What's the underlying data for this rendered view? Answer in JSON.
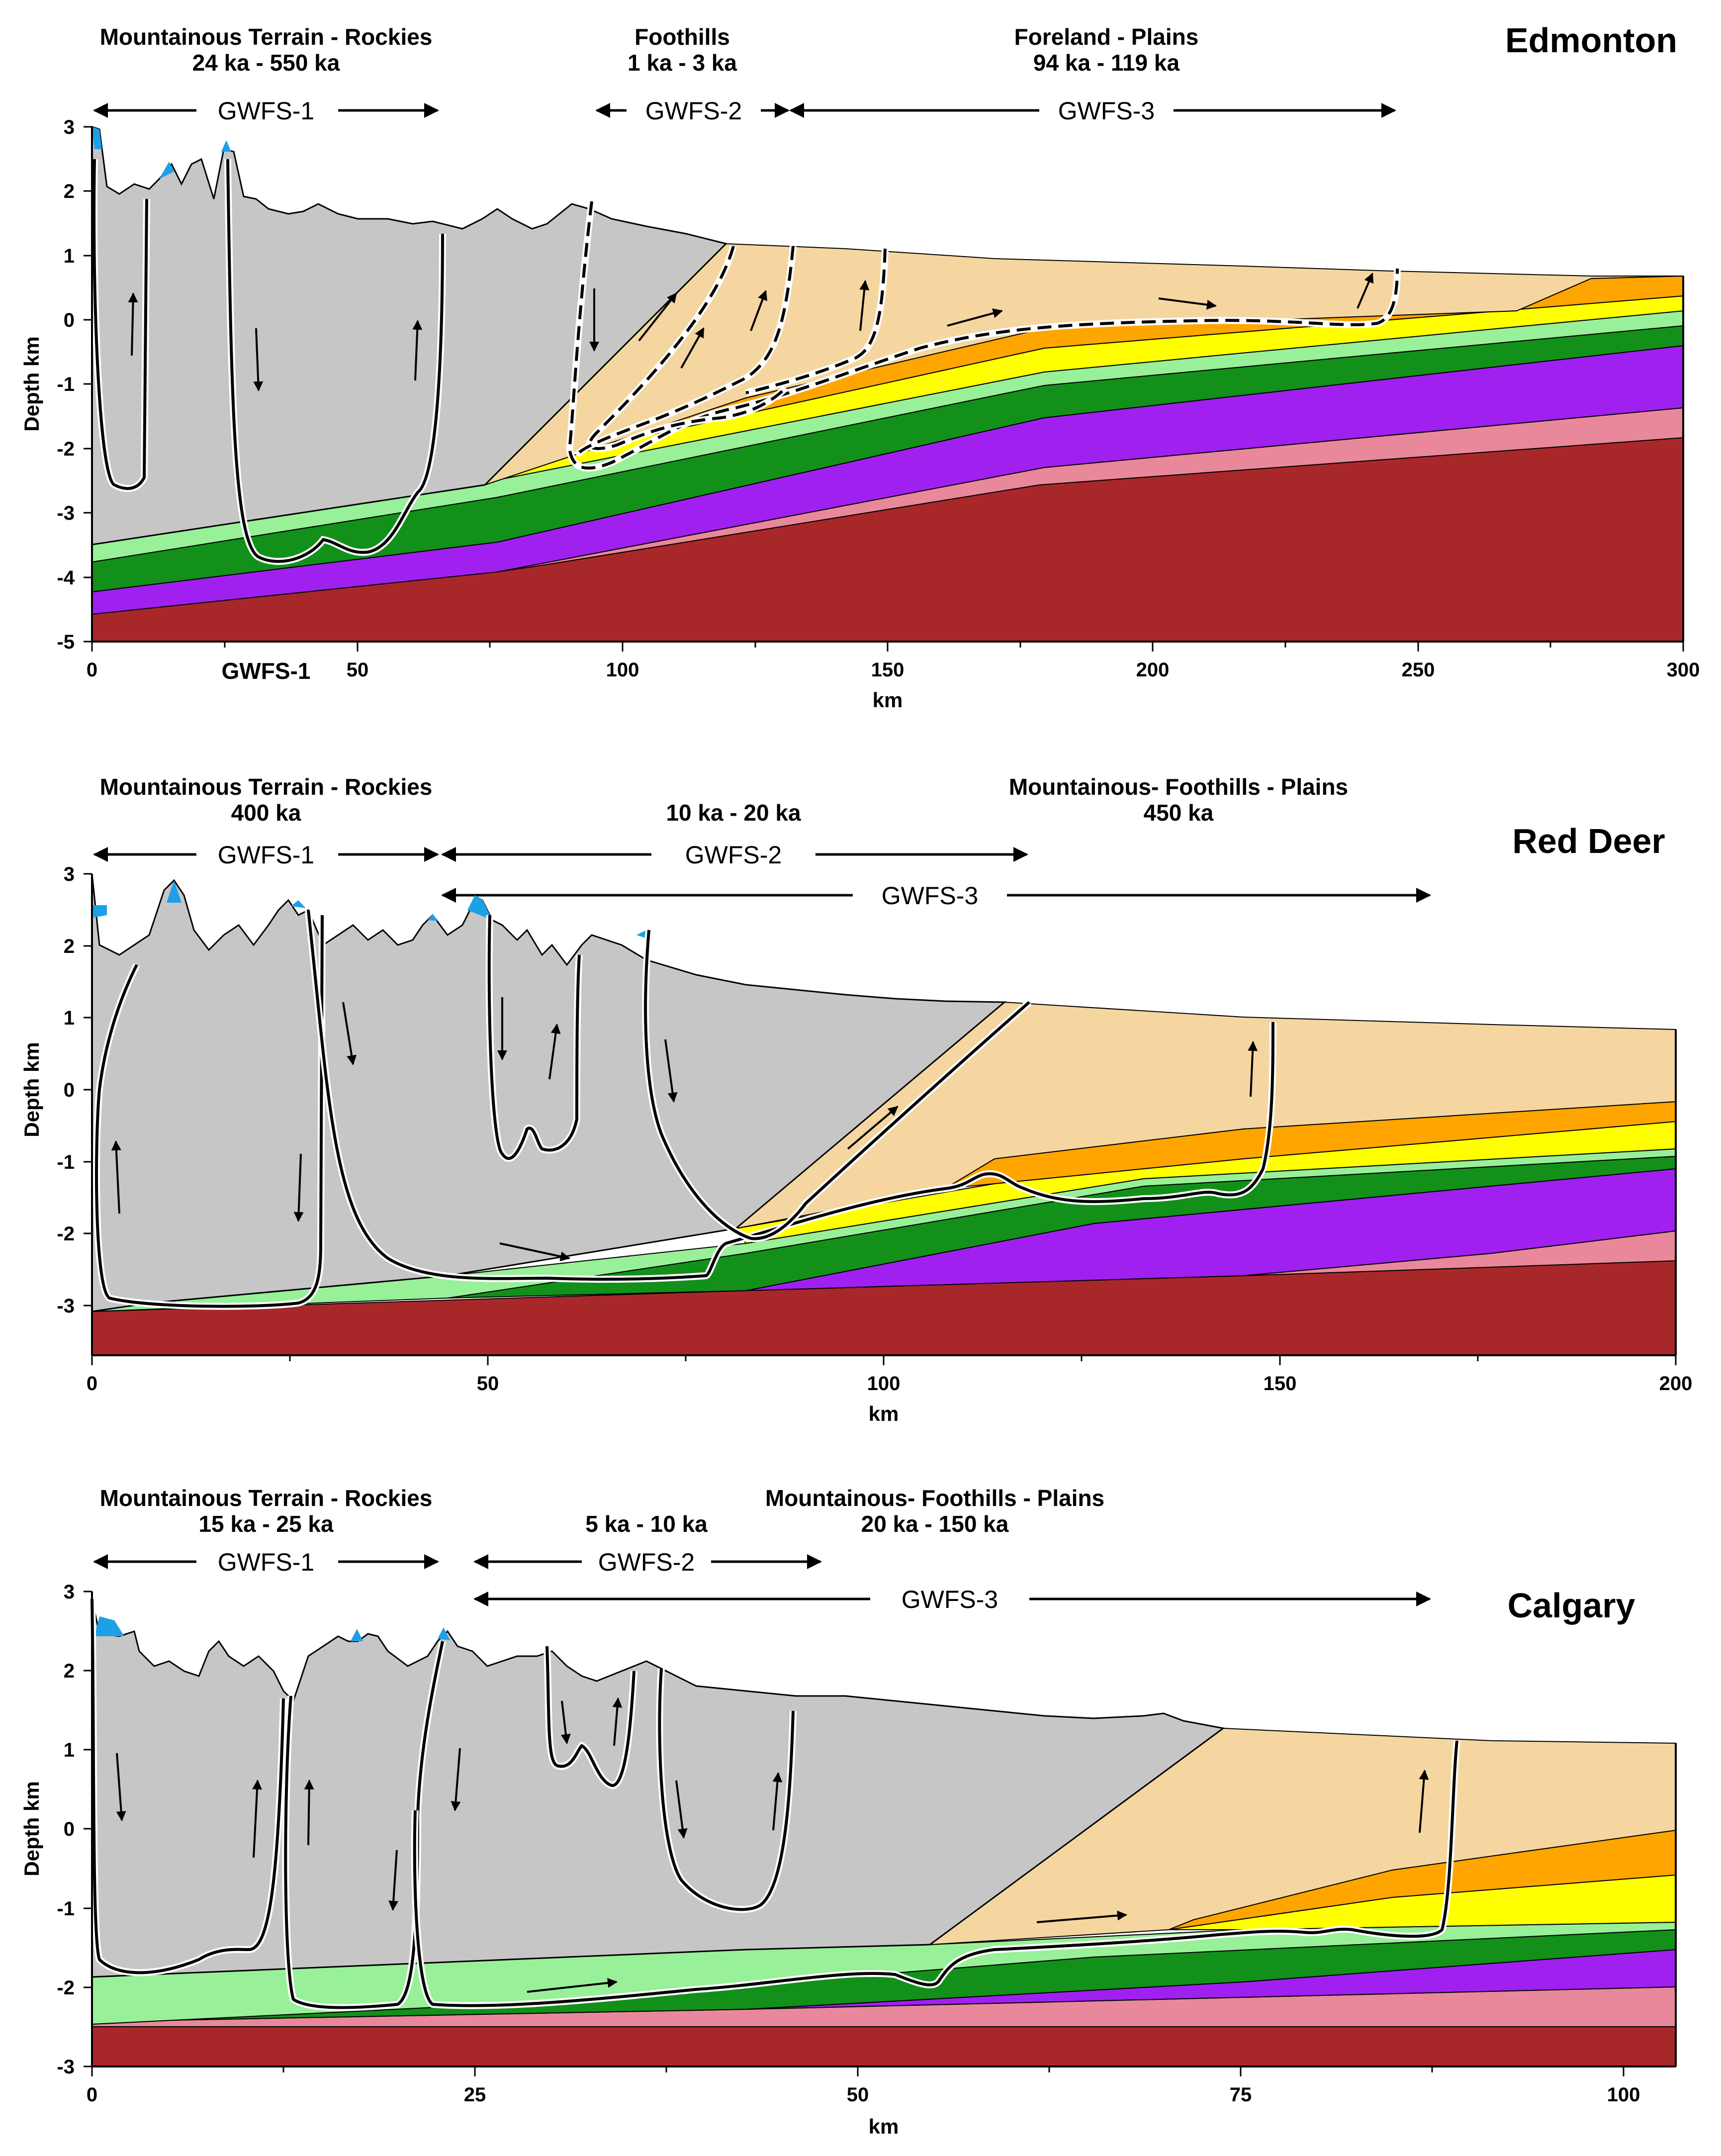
{
  "colors": {
    "basement": "#a8282a",
    "pink": "#e8889a",
    "purple": "#a020f0",
    "dark_green": "#12901a",
    "light_green": "#98f098",
    "yellow": "#ffff00",
    "orange": "#ffa500",
    "tan": "#f5d6a0",
    "grey": "#c6c6c6",
    "ice": "#1ea0e6"
  },
  "panels": [
    {
      "id": "edmonton",
      "city": "Edmonton",
      "headers": [
        {
          "title": "Mountainous Terrain - Rockies",
          "ages": "24 ka - 550 ka"
        },
        {
          "title": "Foothills",
          "ages": "1 ka - 3 ka"
        },
        {
          "title": "Foreland - Plains",
          "ages": "94 ka - 119 ka"
        }
      ],
      "gwfs": [
        "GWFS-1",
        "GWFS-2",
        "GWFS-3"
      ],
      "extra_label": "GWFS-1",
      "x_label": "km",
      "y_label": "Depth km",
      "x_ticks": [
        "0",
        "50",
        "100",
        "150",
        "200",
        "250",
        "300"
      ],
      "y_ticks": [
        "3",
        "2",
        "1",
        "0",
        "-1",
        "-2",
        "-3",
        "-4",
        "-5"
      ]
    },
    {
      "id": "red-deer",
      "city": "Red Deer",
      "headers": [
        {
          "title": "Mountainous Terrain - Rockies",
          "ages": "400 ka"
        },
        {
          "title": "",
          "ages": "10 ka - 20 ka"
        },
        {
          "title": "Mountainous- Foothills - Plains",
          "ages": "450 ka"
        }
      ],
      "gwfs": [
        "GWFS-1",
        "GWFS-2",
        "GWFS-3"
      ],
      "x_label": "km",
      "y_label": "Depth km",
      "x_ticks": [
        "0",
        "50",
        "100",
        "150",
        "200"
      ],
      "y_ticks": [
        "3",
        "2",
        "1",
        "0",
        "-1",
        "-2",
        "-3"
      ]
    },
    {
      "id": "calgary",
      "city": "Calgary",
      "headers": [
        {
          "title": "Mountainous Terrain - Rockies",
          "ages": "15 ka - 25 ka"
        },
        {
          "title": "",
          "ages": "5 ka - 10 ka"
        },
        {
          "title": "Mountainous- Foothills - Plains",
          "ages": "20 ka - 150 ka"
        }
      ],
      "gwfs": [
        "GWFS-1",
        "GWFS-2",
        "GWFS-3"
      ],
      "x_label": "km",
      "y_label": "Depth km",
      "x_ticks": [
        "0",
        "25",
        "50",
        "75",
        "100"
      ],
      "y_ticks": [
        "3",
        "2",
        "1",
        "0",
        "-1",
        "-2",
        "-3"
      ]
    }
  ]
}
